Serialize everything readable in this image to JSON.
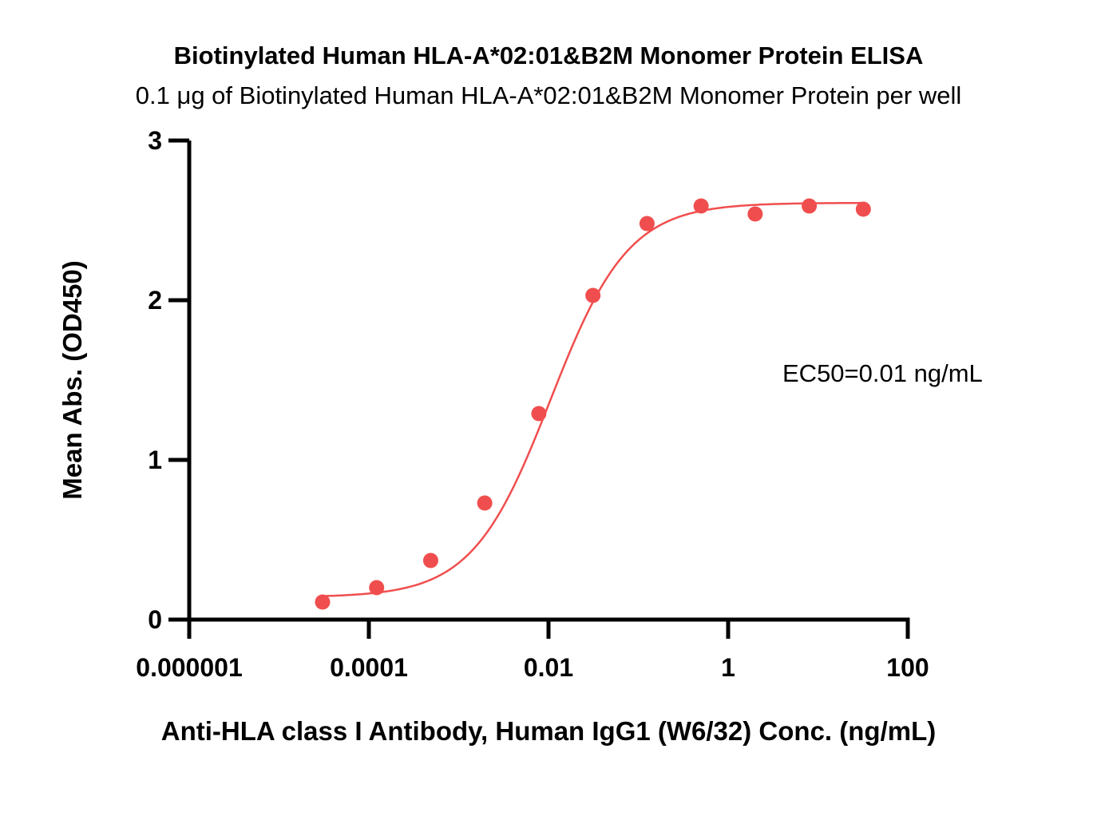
{
  "chart_data": {
    "type": "scatter",
    "title": "Biotinylated Human HLA-A*02:01&B2M Monomer Protein ELISA",
    "subtitle": "0.1 μg of Biotinylated Human HLA-A*02:01&B2M Monomer Protein per well",
    "xlabel": "Anti-HLA class I Antibody, Human IgG1 (W6/32) Conc. (ng/mL)",
    "ylabel": "Mean Abs. (OD450)",
    "x_scale": "log",
    "xlim": [
      1e-06,
      100
    ],
    "ylim": [
      0,
      3
    ],
    "x_ticks": [
      1e-06,
      0.0001,
      0.01,
      1,
      100
    ],
    "x_tick_labels": [
      "0.000001",
      "0.0001",
      "0.01",
      "1",
      "100"
    ],
    "y_ticks": [
      0,
      1,
      2,
      3
    ],
    "y_tick_labels": [
      "0",
      "1",
      "2",
      "3"
    ],
    "grid": false,
    "annotation": "EC50=0.01 ng/mL",
    "series": [
      {
        "color": "#f04e4e",
        "x": [
          3.05e-05,
          0.000122,
          0.000488,
          0.00195,
          0.00781,
          0.03125,
          0.125,
          0.5,
          2,
          8,
          32
        ],
        "y": [
          0.11,
          0.2,
          0.37,
          0.73,
          1.29,
          2.03,
          2.48,
          2.59,
          2.54,
          2.59,
          2.57
        ]
      }
    ],
    "fit": {
      "model": "4PL",
      "bottom": 0.14,
      "top": 2.61,
      "ec50": 0.0105,
      "hill": 1.0,
      "x_start": 3.05e-05,
      "x_end": 32
    }
  }
}
